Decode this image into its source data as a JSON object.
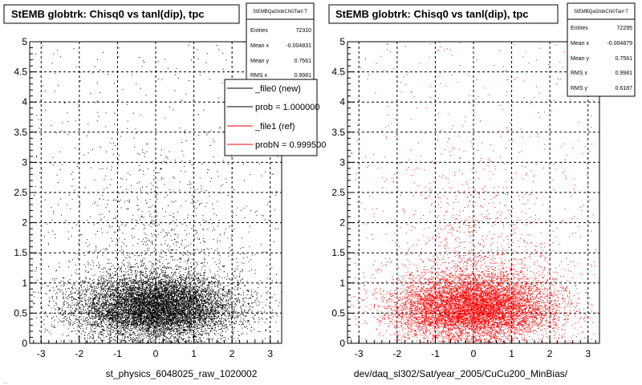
{
  "colors": {
    "file0": "#000000",
    "file1": "#ff0000",
    "frame": "#000000",
    "grid": "#000000"
  },
  "footer_text": "...",
  "chart_data": [
    {
      "type": "scatter",
      "title": "StEMB globtrk: Chisq0 vs tanl(dip), tpc",
      "xlabel": "st_physics_6048025_raw_1020002",
      "ylabel": "",
      "xlim": [
        -3.3,
        3.3
      ],
      "ylim": [
        0,
        5
      ],
      "xticks": [
        "-3",
        "-2",
        "-1",
        "0",
        "1",
        "2",
        "3"
      ],
      "yticks": [
        "0",
        "0.5",
        "1",
        "1.5",
        "2",
        "2.5",
        "3",
        "3.5",
        "4",
        "4.5",
        "5"
      ],
      "grid": true,
      "series": [
        {
          "name": "_file0 (new)",
          "color": "#000000",
          "n_points": 11000,
          "x_mean": -0.004831,
          "x_rms": 0.9981,
          "y_mean": 0.7561,
          "y_rms": 0.6187
        }
      ],
      "stats": {
        "name": "StEMBQaGlobChi0Tanl T",
        "rows": [
          {
            "label": "Entries",
            "value": "72310"
          },
          {
            "label": "Mean x",
            "value": "-0.004831"
          },
          {
            "label": "Mean y",
            "value": "0.7561"
          },
          {
            "label": "RMS x",
            "value": "0.9981"
          }
        ]
      },
      "legend": {
        "position": "top-right",
        "entries": [
          {
            "label": "_file0 (new)",
            "color": "#000000"
          },
          {
            "label": "prob = 1.000000",
            "color": "#000000"
          },
          {
            "label": "_file1 (ref)",
            "color": "#ff0000"
          },
          {
            "label": "probN = 0.999500",
            "color": "#ff0000"
          }
        ]
      }
    },
    {
      "type": "scatter",
      "title": "StEMB globtrk: Chisq0 vs tanl(dip), tpc",
      "xlabel": "dev/daq_sl302/Sat/year_2005/CuCu200_MinBias/",
      "ylabel": "",
      "xlim": [
        -3.3,
        3.3
      ],
      "ylim": [
        0,
        5
      ],
      "xticks": [
        "-3",
        "-2",
        "-1",
        "0",
        "1",
        "2",
        "3"
      ],
      "yticks": [
        "0",
        "0.5",
        "1",
        "1.5",
        "2",
        "2.5",
        "3",
        "3.5",
        "4",
        "4.5",
        "5"
      ],
      "grid": true,
      "series": [
        {
          "name": "_file1 (ref)",
          "color": "#ff0000",
          "n_points": 10000,
          "x_mean": -0.004879,
          "x_rms": 0.9981,
          "y_mean": 0.7561,
          "y_rms": 0.6187
        }
      ],
      "stats": {
        "name": "StEMBQaGlobChi0Tanl T",
        "rows": [
          {
            "label": "Entries",
            "value": "72295"
          },
          {
            "label": "Mean x",
            "value": "-0.004879"
          },
          {
            "label": "Mean y",
            "value": "0.7561"
          },
          {
            "label": "RMS x",
            "value": "0.9981"
          },
          {
            "label": "RMS y",
            "value": "0.6187"
          }
        ]
      }
    }
  ]
}
